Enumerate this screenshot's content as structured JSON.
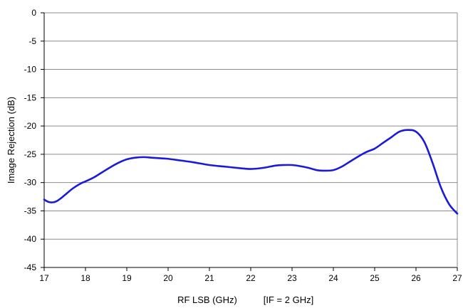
{
  "chart_data": {
    "type": "line",
    "xlabel": "RF LSB (GHz)",
    "xlabel_note": "[IF = 2 GHz]",
    "ylabel": "Image Rejection (dB)",
    "xlim": [
      17,
      27
    ],
    "ylim": [
      -45,
      0
    ],
    "x_ticks": [
      17,
      18,
      19,
      20,
      21,
      22,
      23,
      24,
      25,
      26,
      27
    ],
    "y_ticks": [
      0,
      -5,
      -10,
      -15,
      -20,
      -25,
      -30,
      -35,
      -40,
      -45
    ],
    "grid": "horizontal",
    "series": [
      {
        "color": "#1a1adc",
        "x": [
          17.0,
          17.1,
          17.2,
          17.3,
          17.4,
          17.5,
          17.7,
          17.9,
          18.0,
          18.2,
          18.4,
          18.6,
          18.8,
          19.0,
          19.2,
          19.4,
          19.6,
          19.8,
          20.0,
          20.3,
          20.6,
          21.0,
          21.4,
          21.8,
          22.0,
          22.3,
          22.6,
          22.8,
          23.0,
          23.2,
          23.4,
          23.6,
          23.8,
          24.0,
          24.2,
          24.4,
          24.6,
          24.8,
          25.0,
          25.2,
          25.4,
          25.6,
          25.8,
          26.0,
          26.2,
          26.4,
          26.6,
          26.8,
          27.0
        ],
        "y": [
          -33.0,
          -33.4,
          -33.5,
          -33.3,
          -32.8,
          -32.2,
          -31.0,
          -30.1,
          -29.8,
          -29.1,
          -28.2,
          -27.3,
          -26.5,
          -25.9,
          -25.6,
          -25.5,
          -25.6,
          -25.7,
          -25.8,
          -26.1,
          -26.4,
          -26.9,
          -27.2,
          -27.5,
          -27.6,
          -27.4,
          -27.0,
          -26.9,
          -26.9,
          -27.1,
          -27.4,
          -27.8,
          -27.9,
          -27.8,
          -27.2,
          -26.3,
          -25.4,
          -24.6,
          -24.0,
          -23.0,
          -22.0,
          -21.0,
          -20.7,
          -21.0,
          -22.8,
          -26.5,
          -30.8,
          -33.8,
          -35.5
        ]
      }
    ]
  }
}
